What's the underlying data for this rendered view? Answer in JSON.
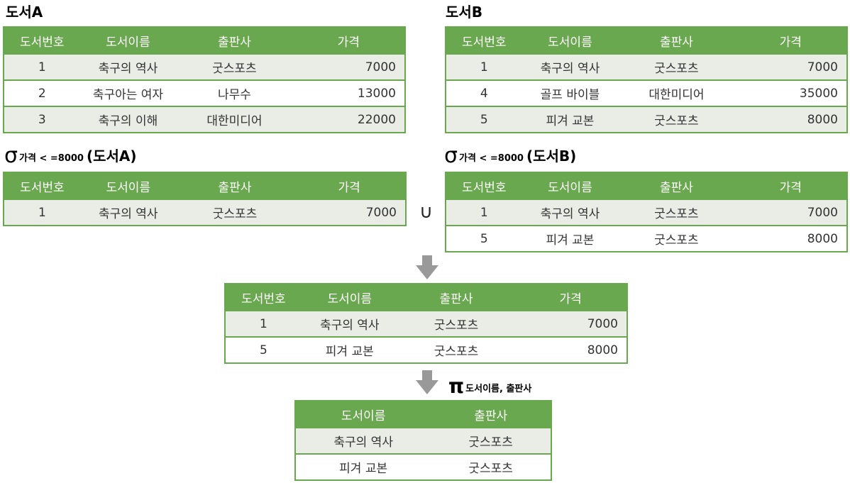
{
  "labels": {
    "tableA": "도서A",
    "tableB": "도서B",
    "sigma_symbol": "σ",
    "sigma_condition": "가격 < =8000",
    "sigma_A_arg": "(도서A)",
    "sigma_B_arg": "(도서B)",
    "union_symbol": "∪",
    "pi_symbol": "π",
    "pi_attrs": "도서이름, 출판사"
  },
  "columns4": [
    "도서번호",
    "도서이름",
    "출판사",
    "가격"
  ],
  "columns2": [
    "도서이름",
    "출판사"
  ],
  "tableA": [
    [
      "1",
      "축구의 역사",
      "굿스포츠",
      "7000"
    ],
    [
      "2",
      "축구아는 여자",
      "나무수",
      "13000"
    ],
    [
      "3",
      "축구의 이해",
      "대한미디어",
      "22000"
    ]
  ],
  "tableB": [
    [
      "1",
      "축구의 역사",
      "굿스포츠",
      "7000"
    ],
    [
      "4",
      "골프 바이블",
      "대한미디어",
      "35000"
    ],
    [
      "5",
      "피겨 교본",
      "굿스포츠",
      "8000"
    ]
  ],
  "selectA": [
    [
      "1",
      "축구의 역사",
      "굿스포츠",
      "7000"
    ]
  ],
  "selectB": [
    [
      "1",
      "축구의 역사",
      "굿스포츠",
      "7000"
    ],
    [
      "5",
      "피겨 교본",
      "굿스포츠",
      "8000"
    ]
  ],
  "unionResult": [
    [
      "1",
      "축구의 역사",
      "굿스포츠",
      "7000"
    ],
    [
      "5",
      "피겨 교본",
      "굿스포츠",
      "8000"
    ]
  ],
  "projectResult": [
    [
      "축구의 역사",
      "굿스포츠"
    ],
    [
      "피겨 교본",
      "굿스포츠"
    ]
  ],
  "colors": {
    "header": "#6aa84f",
    "stripe": "#eaede6",
    "arrow": "#999999"
  }
}
